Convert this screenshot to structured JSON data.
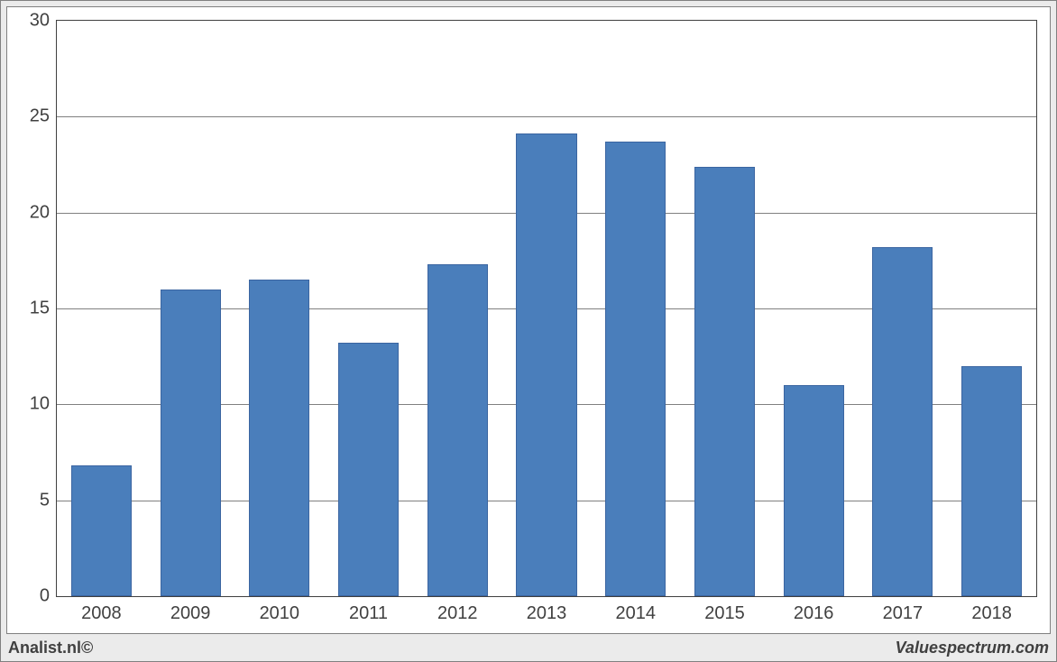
{
  "chart": {
    "type": "bar",
    "categories": [
      "2008",
      "2009",
      "2010",
      "2011",
      "2012",
      "2013",
      "2014",
      "2015",
      "2016",
      "2017",
      "2018"
    ],
    "values": [
      6.8,
      16.0,
      16.5,
      13.2,
      17.3,
      24.1,
      23.7,
      22.4,
      11.0,
      18.2,
      12.0
    ],
    "bar_color": "#4a7ebb",
    "bar_border_color": "#3b65a1",
    "ylim": [
      0,
      30
    ],
    "ytick_step": 5,
    "yticks": [
      0,
      5,
      10,
      15,
      20,
      25,
      30
    ],
    "background_color": "#ffffff",
    "outer_background": "#ebebeb",
    "grid_color": "#808080",
    "axis_color": "#404040",
    "label_fontsize": 20,
    "bar_width_ratio": 0.68
  },
  "footer": {
    "left": "Analist.nl©",
    "right": "Valuespectrum.com"
  }
}
